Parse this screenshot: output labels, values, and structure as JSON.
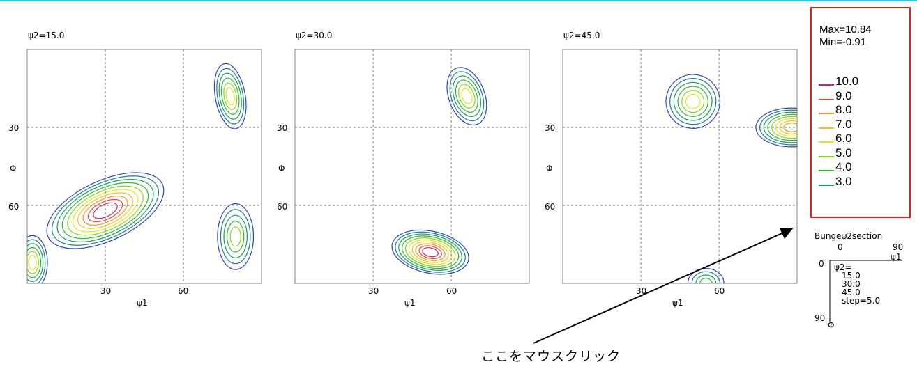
{
  "colors": {
    "level_3": "#16a050",
    "level_4": "#2bb830",
    "level_5": "#82d818",
    "level_6": "#dde81a",
    "level_7": "#f6c020",
    "level_8": "#f39420",
    "level_9": "#ec4a2a",
    "level_10": "#e01a6a",
    "level_1": "#2a3fd6",
    "level_2": "#1a8090",
    "legend_border": "#e02020",
    "top_rule": "#2ec7dd"
  },
  "chart_data": [
    {
      "type": "contour",
      "title": "ψ2=15.0",
      "xlabel": "ψ1",
      "ylabel": "Φ",
      "x_ticks": [
        "30",
        "60"
      ],
      "y_ticks": [
        "30",
        "60"
      ],
      "xlim": [
        0,
        90
      ],
      "ylim": [
        0,
        90
      ],
      "y_inverted": true,
      "grid": true,
      "peaks": [
        {
          "psi1": 30,
          "phi": 62,
          "max_level": 10
        },
        {
          "psi1": 78,
          "phi": 18,
          "max_level": 6
        },
        {
          "psi1": 80,
          "phi": 72,
          "max_level": 5
        },
        {
          "psi1": 2,
          "phi": 82,
          "max_level": 6
        }
      ]
    },
    {
      "type": "contour",
      "title": "ψ2=30.0",
      "xlabel": "ψ1",
      "ylabel": "Φ",
      "x_ticks": [
        "30",
        "60"
      ],
      "y_ticks": [
        "30",
        "60"
      ],
      "xlim": [
        0,
        90
      ],
      "ylim": [
        0,
        90
      ],
      "y_inverted": true,
      "grid": true,
      "peaks": [
        {
          "psi1": 52,
          "phi": 78,
          "max_level": 10
        },
        {
          "psi1": 66,
          "phi": 18,
          "max_level": 6
        }
      ]
    },
    {
      "type": "contour",
      "title": "ψ2=45.0",
      "xlabel": "ψ1",
      "ylabel": "Φ",
      "x_ticks": [
        "30",
        "60"
      ],
      "y_ticks": [
        "30",
        "60"
      ],
      "xlim": [
        0,
        90
      ],
      "ylim": [
        0,
        90
      ],
      "y_inverted": true,
      "grid": true,
      "peaks": [
        {
          "psi1": 50,
          "phi": 20,
          "max_level": 6
        },
        {
          "psi1": 88,
          "phi": 30,
          "max_level": 8
        },
        {
          "psi1": 55,
          "phi": 90,
          "max_level": 4
        }
      ]
    }
  ],
  "legend": {
    "max_label": "Max=10.84",
    "min_label": "Min=-0.91",
    "levels": [
      "10.0",
      "9.0",
      "8.0",
      "7.0",
      "6.0",
      "5.0",
      "4.0",
      "3.0"
    ]
  },
  "section_key": {
    "title": "Bungeψ2section",
    "x_start": "0",
    "x_end": "90",
    "x_axis": "ψ1",
    "y_start": "0",
    "y_end": "90",
    "y_axis": "Φ",
    "psi2_label": "ψ2=",
    "values": [
      "15.0",
      "30.0",
      "45.0"
    ],
    "step": "step=5.0"
  },
  "callout": {
    "text": "ここをマウスクリック"
  }
}
